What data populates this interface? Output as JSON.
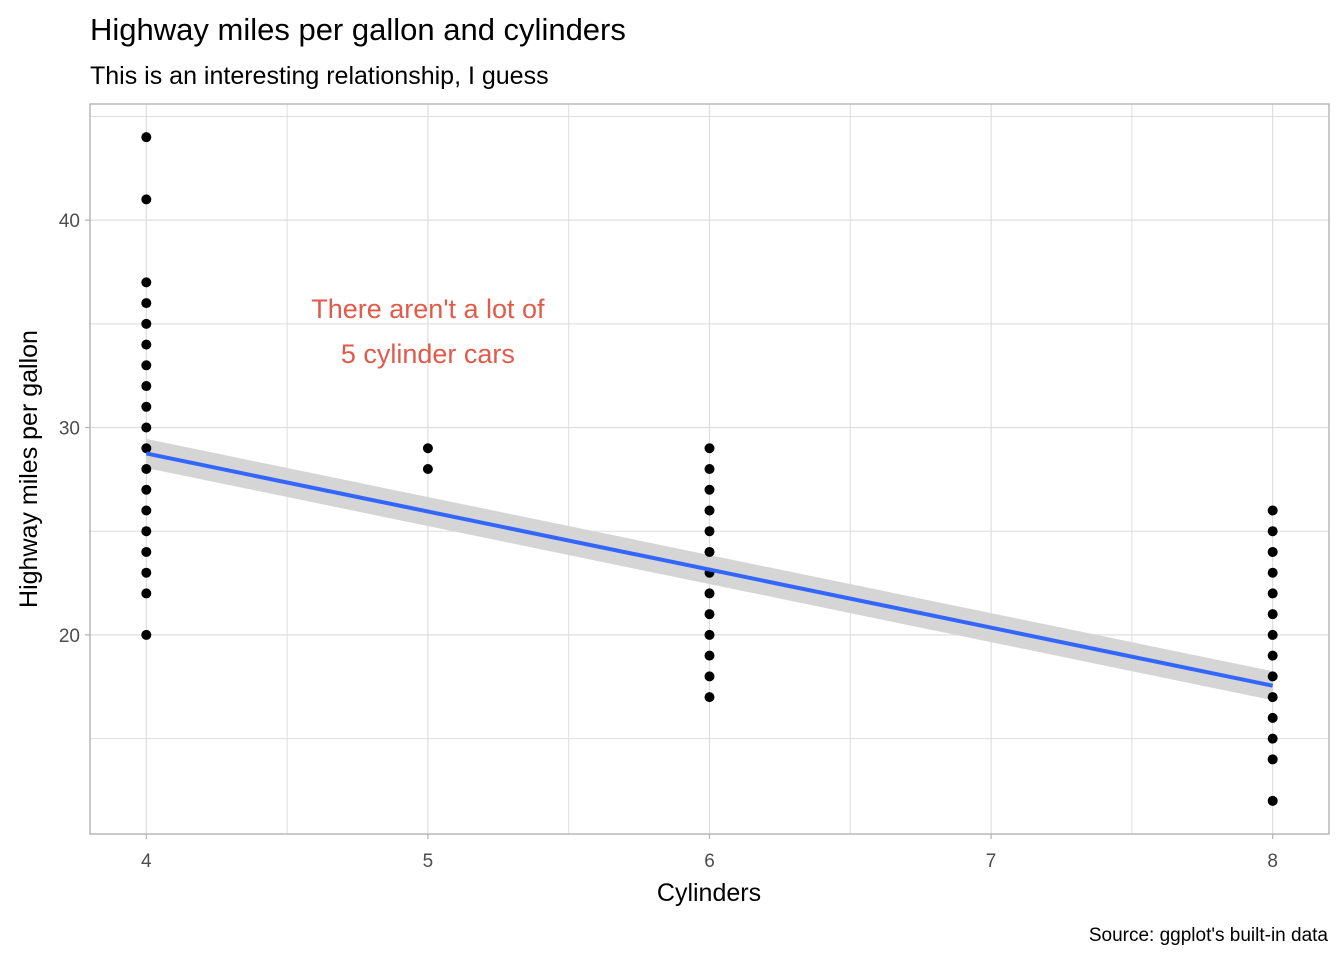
{
  "chart_data": {
    "type": "scatter",
    "title": "Highway miles per gallon and cylinders",
    "subtitle": "This is an interesting relationship, I guess",
    "caption": "Source: ggplot's built-in data",
    "xlabel": "Cylinders",
    "ylabel": "Highway miles per gallon",
    "xlim": [
      3.8,
      8.2
    ],
    "ylim": [
      10.4,
      45.6
    ],
    "x_ticks": [
      4,
      5,
      6,
      7,
      8
    ],
    "x_tick_labels": [
      "4",
      "5",
      "6",
      "7",
      "8"
    ],
    "x_minor": [
      4.5,
      5.5,
      6.5,
      7.5
    ],
    "y_ticks": [
      20,
      30,
      40
    ],
    "y_tick_labels": [
      "20",
      "30",
      "40"
    ],
    "y_minor": [
      15,
      25,
      35,
      45
    ],
    "grid": true,
    "points": [
      {
        "x": 4,
        "y": [
          44,
          41,
          37,
          36,
          35,
          34,
          33,
          32,
          31,
          30,
          29,
          28,
          27,
          26,
          25,
          24,
          23,
          22,
          20
        ]
      },
      {
        "x": 5,
        "y": [
          29,
          28
        ]
      },
      {
        "x": 6,
        "y": [
          29,
          28,
          27,
          26,
          25,
          24,
          23,
          22,
          21,
          20,
          19,
          18,
          17
        ]
      },
      {
        "x": 8,
        "y": [
          26,
          25,
          24,
          23,
          22,
          21,
          20,
          19,
          18,
          17,
          16,
          15,
          14,
          12
        ]
      }
    ],
    "smooth": {
      "method": "lm",
      "x": [
        4,
        8
      ],
      "y": [
        28.75,
        17.55
      ],
      "ci_upper": [
        29.45,
        18.25
      ],
      "ci_lower": [
        28.05,
        16.85
      ],
      "line_color": "#3366FF",
      "ribbon_color": "#D3D3D3"
    },
    "annotation": {
      "lines": [
        "There aren't a lot of",
        "5 cylinder cars"
      ],
      "x": 5,
      "y": 35,
      "color": "#E15A4A"
    },
    "colors": {
      "points": "#000000",
      "grid": "#DEDEDE",
      "panel_border": "#B3B3B3"
    }
  }
}
